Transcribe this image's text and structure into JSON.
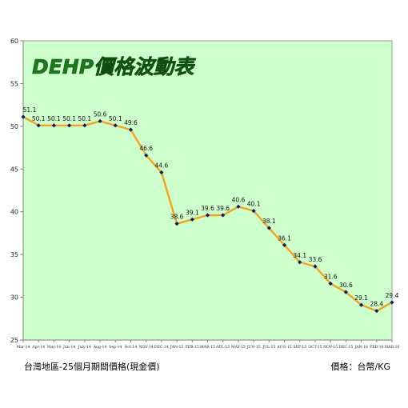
{
  "chart_data": {
    "type": "line",
    "title": "DEHP價格波動表",
    "categories": [
      "Mar-14",
      "Apr-14",
      "May-14",
      "Jun-14",
      "July-14",
      "Aug-14",
      "Sep-14",
      "Oct-14",
      "NOV-14",
      "DEC-14",
      "JAN-15",
      "FEB-15",
      "MAR-15",
      "APL-15",
      "MAY-15",
      "JUN-15",
      "JUL-15",
      "AUG-15",
      "SEP-15",
      "OCT-15",
      "NOV-15",
      "DEC-15",
      "JAN-16",
      "FEB-16",
      "MAR-16"
    ],
    "series": [
      {
        "values": [
          51.1,
          50.1,
          50.1,
          50.1,
          50.1,
          50.6,
          50.1,
          49.6,
          46.6,
          44.6,
          38.6,
          39.1,
          39.6,
          39.6,
          40.6,
          40.1,
          38.1,
          36.1,
          34.1,
          33.6,
          31.6,
          30.6,
          29.1,
          28.4,
          29.4
        ]
      }
    ],
    "data_labels": [
      "51.1",
      "50.1",
      "50.1",
      "50.1",
      "50.1",
      "50.6",
      "50.1",
      "49.6",
      "46.6",
      "44.6",
      "38.6",
      "39.1",
      "39.6",
      "39.6",
      "40.6",
      "40.1",
      "38.1",
      "36.1",
      "34.1",
      "33.6",
      "31.6",
      "30.6",
      "29.1",
      "28.4",
      "29.4"
    ],
    "ylim": [
      25,
      60
    ],
    "yticks": [
      25,
      30,
      35,
      40,
      45,
      50,
      55,
      60
    ],
    "grid": false,
    "colors": {
      "plot_bg": "#ccffcc",
      "line": "#f7a21b",
      "marker": "#0a1a6e",
      "title": "#1a7a1a"
    }
  },
  "footnote_left": "台灣地區-25個月期間價格(現金價)",
  "footnote_right": "價格：台幣/KG"
}
